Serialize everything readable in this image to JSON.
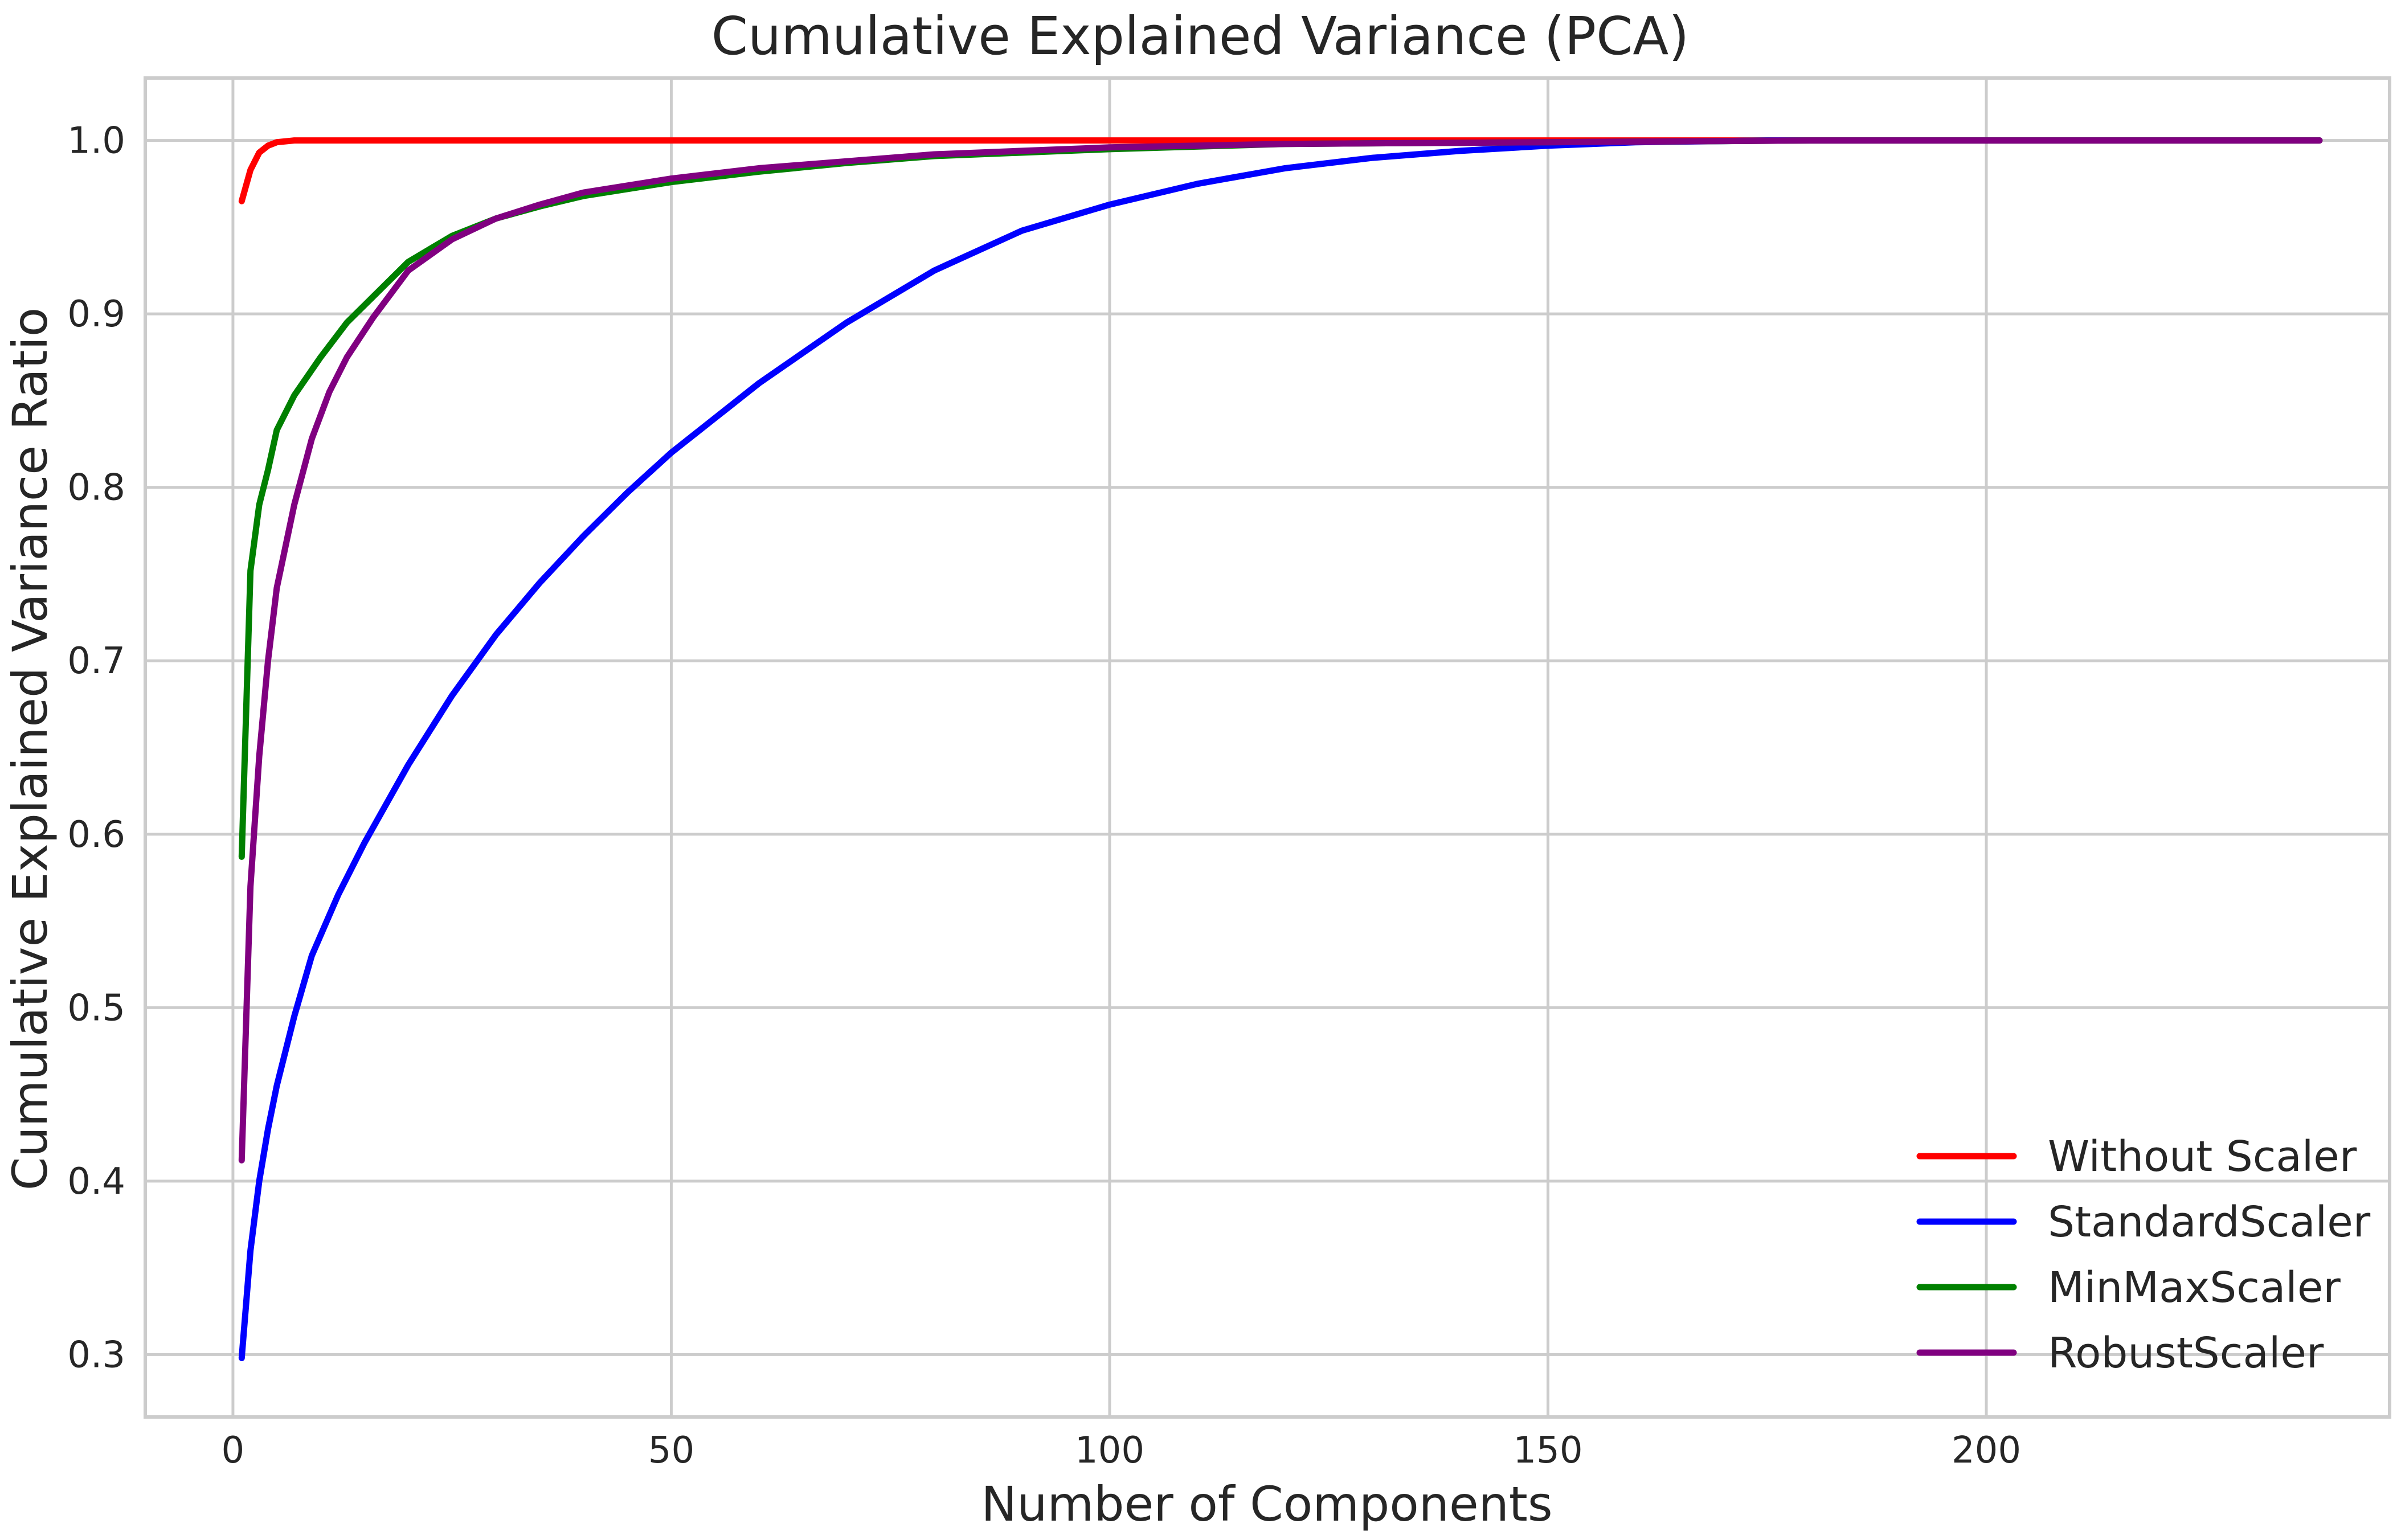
{
  "chart_data": {
    "type": "line",
    "title": "Cumulative Explained Variance (PCA)",
    "xlabel": "Number of Components",
    "ylabel": "Cumulative Explained Variance Ratio",
    "xlim": [
      -10,
      246
    ],
    "ylim": [
      0.264,
      1.036
    ],
    "x_ticks": [
      0,
      50,
      100,
      150,
      200
    ],
    "x_tick_labels": [
      "0",
      "50",
      "100",
      "150",
      "200"
    ],
    "y_ticks": [
      0.3,
      0.4,
      0.5,
      0.6,
      0.7,
      0.8,
      0.9,
      1.0
    ],
    "y_tick_labels": [
      "0.3",
      "0.4",
      "0.5",
      "0.6",
      "0.7",
      "0.8",
      "0.9",
      "1.0"
    ],
    "grid": true,
    "legend_position": "lower-right",
    "series": [
      {
        "name": "Without Scaler",
        "color": "#ff0000",
        "points": [
          [
            1,
            0.965
          ],
          [
            2,
            0.983
          ],
          [
            3,
            0.993
          ],
          [
            4,
            0.997
          ],
          [
            5,
            0.999
          ],
          [
            7,
            1.0
          ],
          [
            10,
            1.0
          ],
          [
            238,
            1.0
          ]
        ]
      },
      {
        "name": "StandardScaler",
        "color": "#0000ff",
        "points": [
          [
            1,
            0.298
          ],
          [
            2,
            0.36
          ],
          [
            3,
            0.4
          ],
          [
            4,
            0.43
          ],
          [
            5,
            0.455
          ],
          [
            7,
            0.495
          ],
          [
            9,
            0.53
          ],
          [
            12,
            0.565
          ],
          [
            15,
            0.595
          ],
          [
            20,
            0.64
          ],
          [
            25,
            0.68
          ],
          [
            30,
            0.715
          ],
          [
            35,
            0.745
          ],
          [
            40,
            0.772
          ],
          [
            45,
            0.797
          ],
          [
            50,
            0.82
          ],
          [
            60,
            0.86
          ],
          [
            70,
            0.895
          ],
          [
            80,
            0.925
          ],
          [
            90,
            0.948
          ],
          [
            100,
            0.963
          ],
          [
            110,
            0.975
          ],
          [
            120,
            0.984
          ],
          [
            130,
            0.99
          ],
          [
            140,
            0.994
          ],
          [
            150,
            0.997
          ],
          [
            160,
            0.999
          ],
          [
            175,
            1.0
          ],
          [
            238,
            1.0
          ]
        ]
      },
      {
        "name": "MinMaxScaler",
        "color": "#008000",
        "points": [
          [
            1,
            0.587
          ],
          [
            2,
            0.752
          ],
          [
            3,
            0.79
          ],
          [
            4,
            0.81
          ],
          [
            5,
            0.833
          ],
          [
            7,
            0.853
          ],
          [
            10,
            0.875
          ],
          [
            13,
            0.895
          ],
          [
            16,
            0.91
          ],
          [
            20,
            0.93
          ],
          [
            25,
            0.945
          ],
          [
            30,
            0.955
          ],
          [
            35,
            0.962
          ],
          [
            40,
            0.968
          ],
          [
            50,
            0.976
          ],
          [
            60,
            0.982
          ],
          [
            70,
            0.987
          ],
          [
            80,
            0.991
          ],
          [
            100,
            0.995
          ],
          [
            120,
            0.998
          ],
          [
            150,
            0.999
          ],
          [
            180,
            1.0
          ],
          [
            238,
            1.0
          ]
        ]
      },
      {
        "name": "RobustScaler",
        "color": "#800080",
        "points": [
          [
            1,
            0.412
          ],
          [
            2,
            0.57
          ],
          [
            3,
            0.645
          ],
          [
            4,
            0.7
          ],
          [
            5,
            0.742
          ],
          [
            7,
            0.79
          ],
          [
            9,
            0.828
          ],
          [
            11,
            0.855
          ],
          [
            13,
            0.875
          ],
          [
            16,
            0.898
          ],
          [
            20,
            0.925
          ],
          [
            25,
            0.943
          ],
          [
            30,
            0.955
          ],
          [
            35,
            0.963
          ],
          [
            40,
            0.97
          ],
          [
            50,
            0.978
          ],
          [
            60,
            0.984
          ],
          [
            70,
            0.988
          ],
          [
            80,
            0.992
          ],
          [
            100,
            0.996
          ],
          [
            120,
            0.998
          ],
          [
            150,
            0.999
          ],
          [
            180,
            1.0
          ],
          [
            238,
            1.0
          ]
        ]
      }
    ]
  }
}
